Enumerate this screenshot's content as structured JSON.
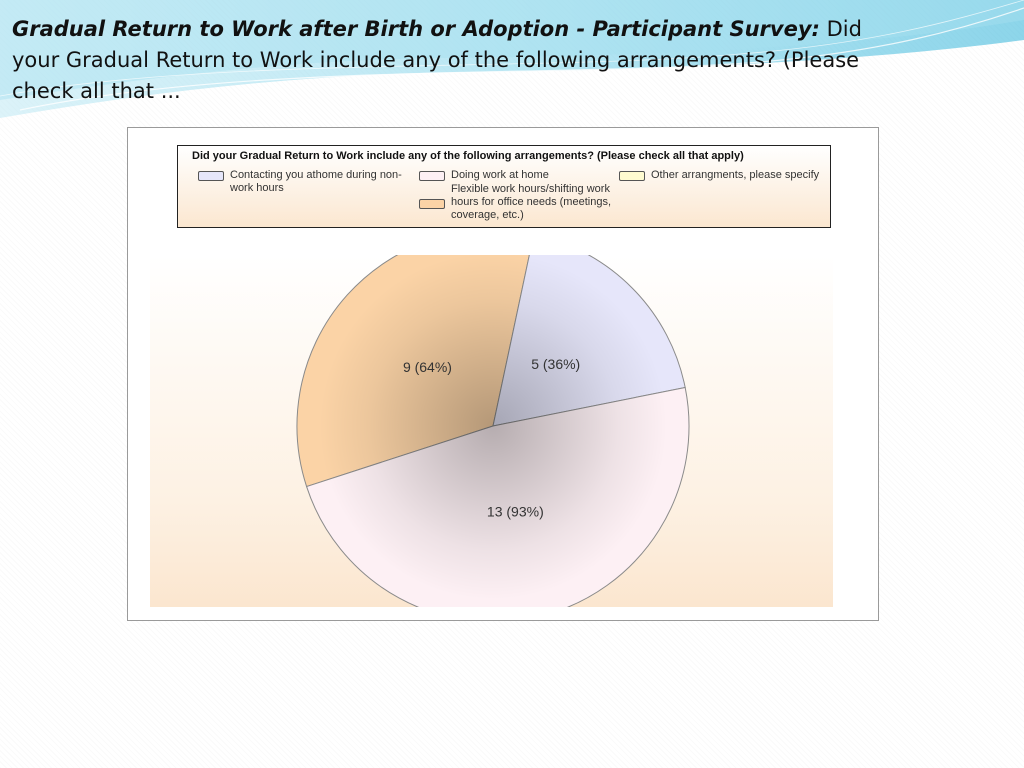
{
  "slide": {
    "title_lead": "Gradual Return to Work after Birth or Adoption - Participant Survey:",
    "title_rest": " Did your Gradual Return to Work include any of the following arrangements? (Please check all that ..."
  },
  "chart_data": {
    "type": "pie",
    "title": "Did your Gradual Return to Work include any of the following arrangements? (Please check all that apply)",
    "legend_position": "top",
    "legend": [
      {
        "label": "Contacting you athome during non-work hours",
        "color": "#e6e6fa"
      },
      {
        "label": "Doing work at home",
        "color": "#fdf0f4"
      },
      {
        "label": "Flexible work hours/shifting work hours for office needs (meetings, coverage, etc.)",
        "color": "#fbd3a6"
      },
      {
        "label": "Other arrangments, please specify",
        "color": "#fffbd0"
      }
    ],
    "slices": [
      {
        "category": "Flexible work hours/shifting work hours for office needs (meetings, coverage, etc.)",
        "value": 9,
        "label": "9 (64%)",
        "color": "#fbd3a6"
      },
      {
        "category": "Contacting you athome during non-work hours",
        "value": 5,
        "label": "5 (36%)",
        "color": "#e6e6fa"
      },
      {
        "category": "Doing work at home",
        "value": 13,
        "label": "13 (93%)",
        "color": "#fdf0f4"
      }
    ]
  }
}
